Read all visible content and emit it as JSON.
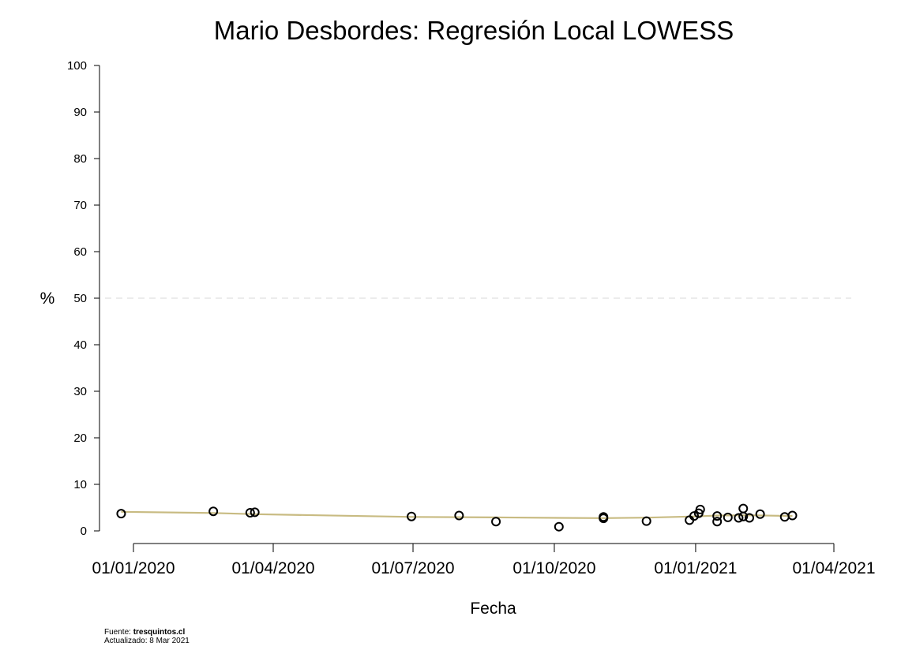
{
  "chart_data": {
    "type": "scatter",
    "title": "Mario Desbordes: Regresión Local LOWESS",
    "xlabel": "Fecha",
    "ylabel": "%",
    "ylim": [
      0,
      100
    ],
    "yticks": [
      0,
      10,
      20,
      30,
      40,
      50,
      60,
      70,
      80,
      90,
      100
    ],
    "xlim": [
      "2020-01-01",
      "2021-04-01"
    ],
    "xticks": [
      {
        "date": "2020-01-01",
        "label": "01/01/2020"
      },
      {
        "date": "2020-04-01",
        "label": "01/04/2020"
      },
      {
        "date": "2020-07-01",
        "label": "01/07/2020"
      },
      {
        "date": "2020-10-01",
        "label": "01/10/2020"
      },
      {
        "date": "2021-01-01",
        "label": "01/01/2021"
      },
      {
        "date": "2021-04-01",
        "label": "01/04/2021"
      }
    ],
    "reference_line": 50,
    "grid": false,
    "points": [
      {
        "x": "2019-12-24",
        "y": 3.7
      },
      {
        "x": "2020-02-22",
        "y": 4.2
      },
      {
        "x": "2020-03-17",
        "y": 3.9
      },
      {
        "x": "2020-03-20",
        "y": 4.0
      },
      {
        "x": "2020-06-30",
        "y": 3.1
      },
      {
        "x": "2020-07-31",
        "y": 3.3
      },
      {
        "x": "2020-08-24",
        "y": 2.0
      },
      {
        "x": "2020-10-04",
        "y": 0.9
      },
      {
        "x": "2020-11-02",
        "y": 2.7
      },
      {
        "x": "2020-11-02",
        "y": 3.0
      },
      {
        "x": "2020-11-30",
        "y": 2.1
      },
      {
        "x": "2020-12-28",
        "y": 2.3
      },
      {
        "x": "2020-12-31",
        "y": 3.2
      },
      {
        "x": "2021-01-03",
        "y": 3.8
      },
      {
        "x": "2021-01-04",
        "y": 4.6
      },
      {
        "x": "2021-01-15",
        "y": 2.0
      },
      {
        "x": "2021-01-15",
        "y": 3.2
      },
      {
        "x": "2021-01-22",
        "y": 2.9
      },
      {
        "x": "2021-01-29",
        "y": 2.8
      },
      {
        "x": "2021-02-01",
        "y": 4.8
      },
      {
        "x": "2021-02-01",
        "y": 3.1
      },
      {
        "x": "2021-02-05",
        "y": 2.8
      },
      {
        "x": "2021-02-12",
        "y": 3.6
      },
      {
        "x": "2021-02-28",
        "y": 3.0
      },
      {
        "x": "2021-03-05",
        "y": 3.3
      }
    ],
    "lowess": [
      {
        "x": "2019-12-24",
        "y": 4.1
      },
      {
        "x": "2020-02-22",
        "y": 3.85
      },
      {
        "x": "2020-03-20",
        "y": 3.6
      },
      {
        "x": "2020-06-30",
        "y": 3.0
      },
      {
        "x": "2020-08-24",
        "y": 2.9
      },
      {
        "x": "2020-10-04",
        "y": 2.8
      },
      {
        "x": "2020-11-02",
        "y": 2.75
      },
      {
        "x": "2020-11-30",
        "y": 2.85
      },
      {
        "x": "2020-12-31",
        "y": 3.1
      },
      {
        "x": "2021-01-15",
        "y": 3.3
      },
      {
        "x": "2021-02-05",
        "y": 3.35
      },
      {
        "x": "2021-03-05",
        "y": 3.2
      }
    ],
    "colors": {
      "points": "#000000",
      "lowess": "#c8bb82",
      "reference_line": "#d9d9d9"
    }
  },
  "footer": {
    "source_prefix": "Fuente: ",
    "source_name": "tresquintos.cl",
    "updated": "Actualizado: 8 Mar 2021"
  }
}
